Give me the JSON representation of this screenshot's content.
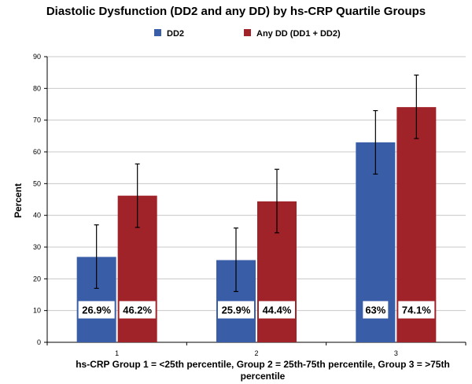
{
  "chart_data": {
    "type": "bar",
    "title": "Diastolic Dysfunction (DD2 and any DD) by hs-CRP Quartile Groups",
    "xlabel": "hs-CRP Group 1 = <25th percentile, Group 2 = 25th-75th percentile, Group 3 = >75th percentile",
    "ylabel": "Percent",
    "ylim": [
      0,
      90
    ],
    "yticks": [
      0,
      10,
      20,
      30,
      40,
      50,
      60,
      70,
      80,
      90
    ],
    "categories": [
      "1",
      "2",
      "3"
    ],
    "grid": true,
    "legend_position": "top",
    "series": [
      {
        "name": "DD2",
        "color": "#3a5da8",
        "values": [
          26.9,
          25.9,
          63
        ],
        "error_low": [
          17,
          16,
          53
        ],
        "error_high": [
          37,
          36,
          73
        ],
        "labels": [
          "26.9%",
          "25.9%",
          "63%"
        ]
      },
      {
        "name": "Any DD (DD1 + DD2)",
        "color": "#a0232a",
        "values": [
          46.2,
          44.4,
          74.1
        ],
        "error_low": [
          36.2,
          34.5,
          64.2
        ],
        "error_high": [
          56.2,
          54.5,
          84.2
        ],
        "labels": [
          "46.2%",
          "44.4%",
          "74.1%"
        ]
      }
    ]
  }
}
